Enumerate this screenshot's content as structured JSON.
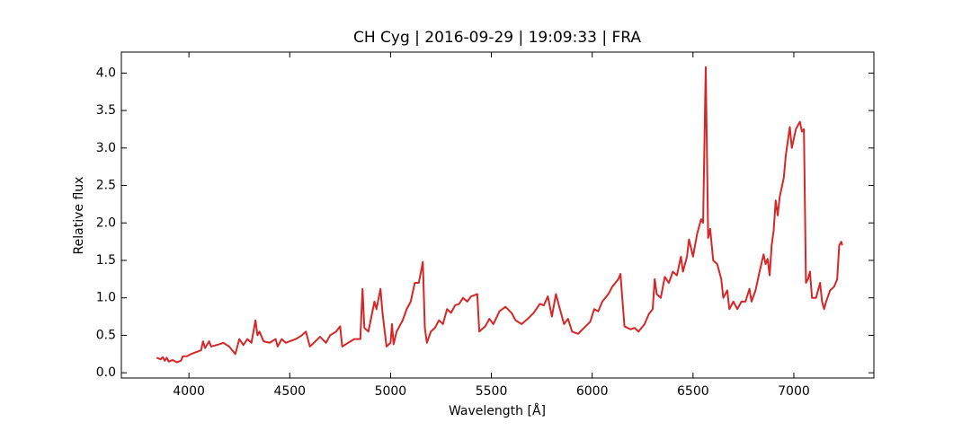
{
  "chart_data": {
    "type": "line",
    "title": "CH Cyg | 2016-09-29 | 19:09:33 | FRA",
    "xlabel": "Wavelength [Å]",
    "ylabel": "Relative flux",
    "xlim": [
      3665,
      7397
    ],
    "ylim": [
      -0.07,
      4.28
    ],
    "xticks": [
      4000,
      4500,
      5000,
      5500,
      6000,
      6500,
      7000
    ],
    "yticks": [
      {
        "value": 0,
        "label": "0.0"
      },
      0.5,
      {
        "value": 1,
        "label": "1.0"
      },
      1.5,
      {
        "value": 2,
        "label": "2.0"
      },
      2.5,
      {
        "value": 3,
        "label": "3.0"
      },
      3.5,
      {
        "value": 4,
        "label": "4.0"
      }
    ],
    "grid": false,
    "series": [
      {
        "color": "#d62728",
        "x": [
          3840,
          3860,
          3870,
          3880,
          3890,
          3900,
          3920,
          3940,
          3960,
          3970,
          3990,
          4010,
          4040,
          4060,
          4070,
          4080,
          4100,
          4110,
          4150,
          4170,
          4200,
          4230,
          4250,
          4270,
          4290,
          4310,
          4330,
          4340,
          4350,
          4370,
          4400,
          4430,
          4440,
          4460,
          4480,
          4500,
          4530,
          4560,
          4580,
          4600,
          4620,
          4650,
          4680,
          4700,
          4730,
          4750,
          4760,
          4790,
          4820,
          4850,
          4861,
          4870,
          4890,
          4920,
          4930,
          4950,
          4960,
          4980,
          5000,
          5007,
          5015,
          5030,
          5060,
          5080,
          5100,
          5120,
          5140,
          5160,
          5170,
          5180,
          5200,
          5220,
          5240,
          5260,
          5280,
          5300,
          5320,
          5340,
          5360,
          5380,
          5400,
          5430,
          5440,
          5470,
          5490,
          5510,
          5540,
          5570,
          5600,
          5620,
          5650,
          5680,
          5710,
          5740,
          5760,
          5780,
          5800,
          5820,
          5840,
          5860,
          5880,
          5900,
          5930,
          5960,
          5990,
          6010,
          6030,
          6050,
          6080,
          6100,
          6130,
          6140,
          6160,
          6190,
          6210,
          6230,
          6260,
          6280,
          6300,
          6310,
          6320,
          6340,
          6360,
          6380,
          6400,
          6420,
          6440,
          6450,
          6470,
          6480,
          6500,
          6520,
          6540,
          6550,
          6563,
          6575,
          6585,
          6600,
          6620,
          6640,
          6650,
          6670,
          6680,
          6700,
          6720,
          6740,
          6760,
          6780,
          6790,
          6810,
          6830,
          6850,
          6860,
          6870,
          6880,
          6890,
          6900,
          6910,
          6920,
          6930,
          6950,
          6960,
          6980,
          6990,
          7010,
          7020,
          7030,
          7040,
          7050,
          7060,
          7070,
          7080,
          7090,
          7110,
          7130,
          7140,
          7150,
          7160,
          7180,
          7200,
          7215,
          7225,
          7235,
          7240
        ],
        "values": [
          0.2,
          0.18,
          0.21,
          0.16,
          0.2,
          0.15,
          0.17,
          0.14,
          0.16,
          0.22,
          0.22,
          0.25,
          0.28,
          0.3,
          0.42,
          0.33,
          0.42,
          0.35,
          0.38,
          0.4,
          0.35,
          0.25,
          0.45,
          0.37,
          0.45,
          0.4,
          0.7,
          0.5,
          0.55,
          0.42,
          0.4,
          0.45,
          0.35,
          0.45,
          0.4,
          0.42,
          0.45,
          0.5,
          0.55,
          0.35,
          0.4,
          0.48,
          0.4,
          0.5,
          0.55,
          0.62,
          0.35,
          0.4,
          0.45,
          0.45,
          1.12,
          0.6,
          0.55,
          0.95,
          0.85,
          1.12,
          0.8,
          0.35,
          0.4,
          0.65,
          0.38,
          0.55,
          0.7,
          0.85,
          0.95,
          1.2,
          1.2,
          1.48,
          0.6,
          0.4,
          0.55,
          0.6,
          0.7,
          0.65,
          0.85,
          0.8,
          0.9,
          0.92,
          1.0,
          0.95,
          1.02,
          1.05,
          0.55,
          0.62,
          0.72,
          0.65,
          0.82,
          0.88,
          0.8,
          0.7,
          0.65,
          0.72,
          0.8,
          0.92,
          0.9,
          1.02,
          0.75,
          1.05,
          0.85,
          0.65,
          0.72,
          0.55,
          0.52,
          0.6,
          0.68,
          0.85,
          0.82,
          0.95,
          1.05,
          1.15,
          1.25,
          1.32,
          0.62,
          0.58,
          0.6,
          0.55,
          0.65,
          0.78,
          0.85,
          1.25,
          1.05,
          1.0,
          1.28,
          1.2,
          1.35,
          1.3,
          1.55,
          1.35,
          1.55,
          1.78,
          1.55,
          1.85,
          2.05,
          2.0,
          4.08,
          1.8,
          1.92,
          1.5,
          1.45,
          1.25,
          1.0,
          1.1,
          0.85,
          0.95,
          0.85,
          0.95,
          0.95,
          1.12,
          0.95,
          1.1,
          1.35,
          1.58,
          1.45,
          1.52,
          1.3,
          1.7,
          1.9,
          2.3,
          2.1,
          2.35,
          2.6,
          2.9,
          3.28,
          3.0,
          3.25,
          3.3,
          3.35,
          3.22,
          3.25,
          1.2,
          1.25,
          1.35,
          1.0,
          1.0,
          1.2,
          0.95,
          0.85,
          0.95,
          1.1,
          1.15,
          1.25,
          1.7,
          1.75,
          1.7
        ]
      }
    ]
  }
}
